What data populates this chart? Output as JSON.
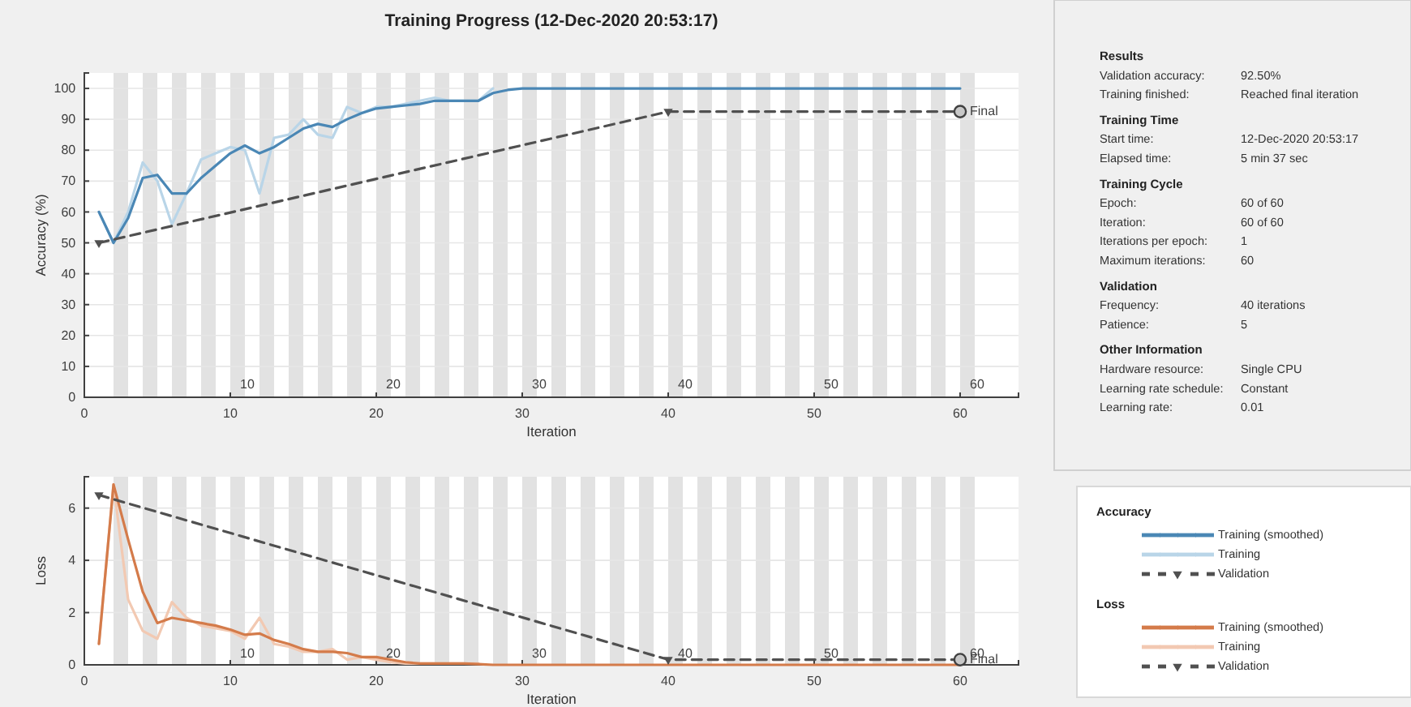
{
  "chart_data": [
    {
      "type": "line",
      "title": "Training Progress (12-Dec-2020 20:53:17)",
      "xlabel": "Iteration",
      "ylabel": "Accuracy (%)",
      "legend_title": "Accuracy",
      "legend": "right",
      "grid": "y",
      "xlim": [
        0,
        64
      ],
      "xticks": [
        0,
        10,
        20,
        30,
        40,
        50,
        60
      ],
      "ylim": [
        0,
        105
      ],
      "yticks": [
        0,
        10,
        20,
        30,
        40,
        50,
        60,
        70,
        80,
        90,
        100
      ],
      "bands": [
        {
          "axis": "x",
          "from": 2,
          "to": 3
        },
        {
          "axis": "x",
          "from": 4,
          "to": 5
        },
        {
          "axis": "x",
          "from": 6,
          "to": 7
        },
        {
          "axis": "x",
          "from": 8,
          "to": 9
        },
        {
          "axis": "x",
          "from": 10,
          "to": 11
        },
        {
          "axis": "x",
          "from": 12,
          "to": 13
        },
        {
          "axis": "x",
          "from": 14,
          "to": 15
        },
        {
          "axis": "x",
          "from": 16,
          "to": 17
        },
        {
          "axis": "x",
          "from": 18,
          "to": 19
        },
        {
          "axis": "x",
          "from": 20,
          "to": 21
        },
        {
          "axis": "x",
          "from": 22,
          "to": 23
        },
        {
          "axis": "x",
          "from": 24,
          "to": 25
        },
        {
          "axis": "x",
          "from": 26,
          "to": 27
        },
        {
          "axis": "x",
          "from": 28,
          "to": 29
        },
        {
          "axis": "x",
          "from": 30,
          "to": 31
        },
        {
          "axis": "x",
          "from": 32,
          "to": 33
        },
        {
          "axis": "x",
          "from": 34,
          "to": 35
        },
        {
          "axis": "x",
          "from": 36,
          "to": 37
        },
        {
          "axis": "x",
          "from": 38,
          "to": 39
        },
        {
          "axis": "x",
          "from": 40,
          "to": 41
        },
        {
          "axis": "x",
          "from": 42,
          "to": 43
        },
        {
          "axis": "x",
          "from": 44,
          "to": 45
        },
        {
          "axis": "x",
          "from": 46,
          "to": 47
        },
        {
          "axis": "x",
          "from": 48,
          "to": 49
        },
        {
          "axis": "x",
          "from": 50,
          "to": 51
        },
        {
          "axis": "x",
          "from": 52,
          "to": 53
        },
        {
          "axis": "x",
          "from": 54,
          "to": 55
        },
        {
          "axis": "x",
          "from": 56,
          "to": 57
        },
        {
          "axis": "x",
          "from": 58,
          "to": 59
        },
        {
          "axis": "x",
          "from": 60,
          "to": 61
        }
      ],
      "annotations": [
        {
          "text": "10",
          "x": 10,
          "y": 4
        },
        {
          "text": "20",
          "x": 20,
          "y": 4
        },
        {
          "text": "30",
          "x": 30,
          "y": 4
        },
        {
          "text": "40",
          "x": 40,
          "y": 4
        },
        {
          "text": "50",
          "x": 50,
          "y": 4
        },
        {
          "text": "60",
          "x": 60,
          "y": 4
        },
        {
          "text": "Final",
          "x": 60,
          "y": 92.5
        }
      ],
      "series": [
        {
          "name": "Training",
          "color": "#b9d5e8",
          "x": [
            1,
            2,
            3,
            4,
            5,
            6,
            7,
            8,
            9,
            10,
            11,
            12,
            13,
            14,
            15,
            16,
            17,
            18,
            19,
            20,
            21,
            22,
            23,
            24,
            25,
            26,
            27,
            28
          ],
          "values": [
            60,
            50,
            60,
            76,
            70,
            56,
            66,
            77,
            79,
            81,
            80,
            66,
            84,
            85,
            90,
            85,
            84,
            94,
            92,
            94,
            94,
            95,
            96,
            97,
            96,
            96,
            96,
            100
          ]
        },
        {
          "name": "Training (smoothed)",
          "color": "#4a87b5",
          "x": [
            1,
            2,
            3,
            4,
            5,
            6,
            7,
            8,
            9,
            10,
            11,
            12,
            13,
            14,
            15,
            16,
            17,
            18,
            19,
            20,
            21,
            22,
            23,
            24,
            25,
            26,
            27,
            28,
            29,
            30,
            35,
            40,
            45,
            50,
            55,
            60
          ],
          "values": [
            60,
            50,
            58,
            71,
            72,
            66,
            66,
            71,
            75,
            79,
            81.5,
            79,
            81,
            84,
            87,
            88.5,
            87.5,
            90,
            92,
            93.5,
            94,
            94.5,
            95,
            96,
            96,
            96,
            96,
            98.5,
            99.5,
            100,
            100,
            100,
            100,
            100,
            100,
            100
          ]
        },
        {
          "name": "Validation",
          "color": "#505050",
          "line_style": "dashed",
          "marker": "triangle",
          "x": [
            1,
            40,
            60
          ],
          "values": [
            50,
            92.5,
            92.5
          ]
        },
        {
          "type": "scatter",
          "marker": "circle",
          "color": "#404040",
          "x": [
            60
          ],
          "values": [
            92.5
          ]
        }
      ]
    },
    {
      "type": "line",
      "xlabel": "Iteration",
      "ylabel": "Loss",
      "legend_title": "Loss",
      "legend": "right",
      "grid": "y",
      "xlim": [
        0,
        64
      ],
      "xticks": [
        0,
        10,
        20,
        30,
        40,
        50,
        60
      ],
      "ylim": [
        0,
        7.2
      ],
      "yticks": [
        0,
        2,
        4,
        6
      ],
      "bands": [
        {
          "axis": "x",
          "from": 2,
          "to": 3
        },
        {
          "axis": "x",
          "from": 4,
          "to": 5
        },
        {
          "axis": "x",
          "from": 6,
          "to": 7
        },
        {
          "axis": "x",
          "from": 8,
          "to": 9
        },
        {
          "axis": "x",
          "from": 10,
          "to": 11
        },
        {
          "axis": "x",
          "from": 12,
          "to": 13
        },
        {
          "axis": "x",
          "from": 14,
          "to": 15
        },
        {
          "axis": "x",
          "from": 16,
          "to": 17
        },
        {
          "axis": "x",
          "from": 18,
          "to": 19
        },
        {
          "axis": "x",
          "from": 20,
          "to": 21
        },
        {
          "axis": "x",
          "from": 22,
          "to": 23
        },
        {
          "axis": "x",
          "from": 24,
          "to": 25
        },
        {
          "axis": "x",
          "from": 26,
          "to": 27
        },
        {
          "axis": "x",
          "from": 28,
          "to": 29
        },
        {
          "axis": "x",
          "from": 30,
          "to": 31
        },
        {
          "axis": "x",
          "from": 32,
          "to": 33
        },
        {
          "axis": "x",
          "from": 34,
          "to": 35
        },
        {
          "axis": "x",
          "from": 36,
          "to": 37
        },
        {
          "axis": "x",
          "from": 38,
          "to": 39
        },
        {
          "axis": "x",
          "from": 40,
          "to": 41
        },
        {
          "axis": "x",
          "from": 42,
          "to": 43
        },
        {
          "axis": "x",
          "from": 44,
          "to": 45
        },
        {
          "axis": "x",
          "from": 46,
          "to": 47
        },
        {
          "axis": "x",
          "from": 48,
          "to": 49
        },
        {
          "axis": "x",
          "from": 50,
          "to": 51
        },
        {
          "axis": "x",
          "from": 52,
          "to": 53
        },
        {
          "axis": "x",
          "from": 54,
          "to": 55
        },
        {
          "axis": "x",
          "from": 56,
          "to": 57
        },
        {
          "axis": "x",
          "from": 58,
          "to": 59
        },
        {
          "axis": "x",
          "from": 60,
          "to": 61
        }
      ],
      "annotations": [
        {
          "text": "10",
          "x": 10,
          "y": 0.4
        },
        {
          "text": "20",
          "x": 20,
          "y": 0.4
        },
        {
          "text": "30",
          "x": 30,
          "y": 0.4
        },
        {
          "text": "40",
          "x": 40,
          "y": 0.4
        },
        {
          "text": "50",
          "x": 50,
          "y": 0.4
        },
        {
          "text": "60",
          "x": 60,
          "y": 0.4
        },
        {
          "text": "Final",
          "x": 60,
          "y": 0.2
        }
      ],
      "series": [
        {
          "name": "Training",
          "color": "#f2c9b2",
          "x": [
            1,
            2,
            3,
            4,
            5,
            6,
            7,
            8,
            9,
            10,
            11,
            12,
            13,
            14,
            15,
            16,
            17,
            18,
            19,
            20,
            21,
            22,
            23,
            24,
            25,
            26,
            27
          ],
          "values": [
            0.8,
            6.9,
            2.5,
            1.3,
            1.0,
            2.4,
            1.8,
            1.5,
            1.4,
            1.3,
            1.0,
            1.8,
            0.8,
            0.7,
            0.5,
            0.5,
            0.6,
            0.2,
            0.3,
            0.2,
            0.1,
            0.05,
            0.05,
            0.05,
            0.05,
            0.05,
            0.05
          ]
        },
        {
          "name": "Training (smoothed)",
          "color": "#d47b4a",
          "x": [
            1,
            2,
            3,
            4,
            5,
            6,
            7,
            8,
            9,
            10,
            11,
            12,
            13,
            14,
            15,
            16,
            17,
            18,
            19,
            20,
            21,
            22,
            23,
            24,
            25,
            26,
            27,
            28,
            30,
            35,
            40,
            45,
            50,
            55,
            60
          ],
          "values": [
            0.8,
            6.9,
            4.8,
            2.8,
            1.6,
            1.8,
            1.7,
            1.6,
            1.5,
            1.35,
            1.15,
            1.2,
            0.95,
            0.8,
            0.6,
            0.5,
            0.5,
            0.45,
            0.3,
            0.3,
            0.2,
            0.1,
            0.05,
            0.05,
            0.05,
            0.05,
            0.03,
            0,
            0,
            0,
            0,
            0,
            0,
            0,
            0
          ]
        },
        {
          "name": "Validation",
          "color": "#505050",
          "line_style": "dashed",
          "marker": "triangle",
          "x": [
            1,
            40,
            60
          ],
          "values": [
            6.5,
            0.2,
            0.2
          ]
        },
        {
          "type": "scatter",
          "marker": "circle",
          "color": "#404040",
          "x": [
            60
          ],
          "values": [
            0.2
          ]
        }
      ]
    },
    {
      "type": "other",
      "annotations": [
        "Results",
        "Validation accuracy:",
        "92.50%",
        "Training finished:",
        "Reached final iteration",
        "Training Time",
        "Start time:",
        "12-Dec-2020 20:53:17",
        "Elapsed time:",
        "5 min 37 sec",
        "Training Cycle",
        "Epoch:",
        "60 of 60",
        "Iteration:",
        "60 of 60",
        "Iterations per epoch:",
        "1",
        "Maximum iterations:",
        "60",
        "Validation",
        "Frequency:",
        "40 iterations",
        "Patience:",
        "5",
        "Other Information",
        "Hardware resource:",
        "Single CPU",
        "Learning rate schedule:",
        "Constant",
        "Learning rate:",
        "0.01"
      ]
    }
  ]
}
